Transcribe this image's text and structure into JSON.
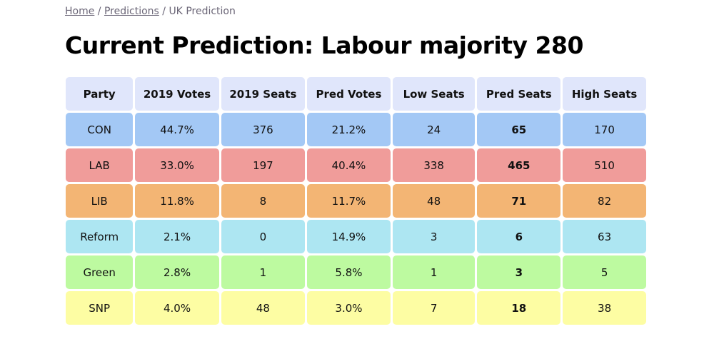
{
  "breadcrumb": {
    "items": [
      "Home",
      "Predictions"
    ],
    "current": "UK Prediction",
    "separator": "/"
  },
  "title": "Current Prediction: Labour majority 280",
  "table": {
    "headers": [
      "Party",
      "2019 Votes",
      "2019 Seats",
      "Pred Votes",
      "Low Seats",
      "Pred Seats",
      "High Seats"
    ],
    "rows": [
      {
        "party": "CON",
        "color": "#a3c8f5",
        "cells": [
          "44.7%",
          "376",
          "21.2%",
          "24",
          "65",
          "170"
        ]
      },
      {
        "party": "LAB",
        "color": "#f09c9a",
        "cells": [
          "33.0%",
          "197",
          "40.4%",
          "338",
          "465",
          "510"
        ]
      },
      {
        "party": "LIB",
        "color": "#f3b574",
        "cells": [
          "11.8%",
          "8",
          "11.7%",
          "48",
          "71",
          "82"
        ]
      },
      {
        "party": "Reform",
        "color": "#ade6f2",
        "cells": [
          "2.1%",
          "0",
          "14.9%",
          "3",
          "6",
          "63"
        ]
      },
      {
        "party": "Green",
        "color": "#bdfaa0",
        "cells": [
          "2.8%",
          "1",
          "5.8%",
          "1",
          "3",
          "5"
        ]
      },
      {
        "party": "SNP",
        "color": "#fdfda3",
        "cells": [
          "4.0%",
          "48",
          "3.0%",
          "7",
          "18",
          "38"
        ]
      }
    ]
  }
}
